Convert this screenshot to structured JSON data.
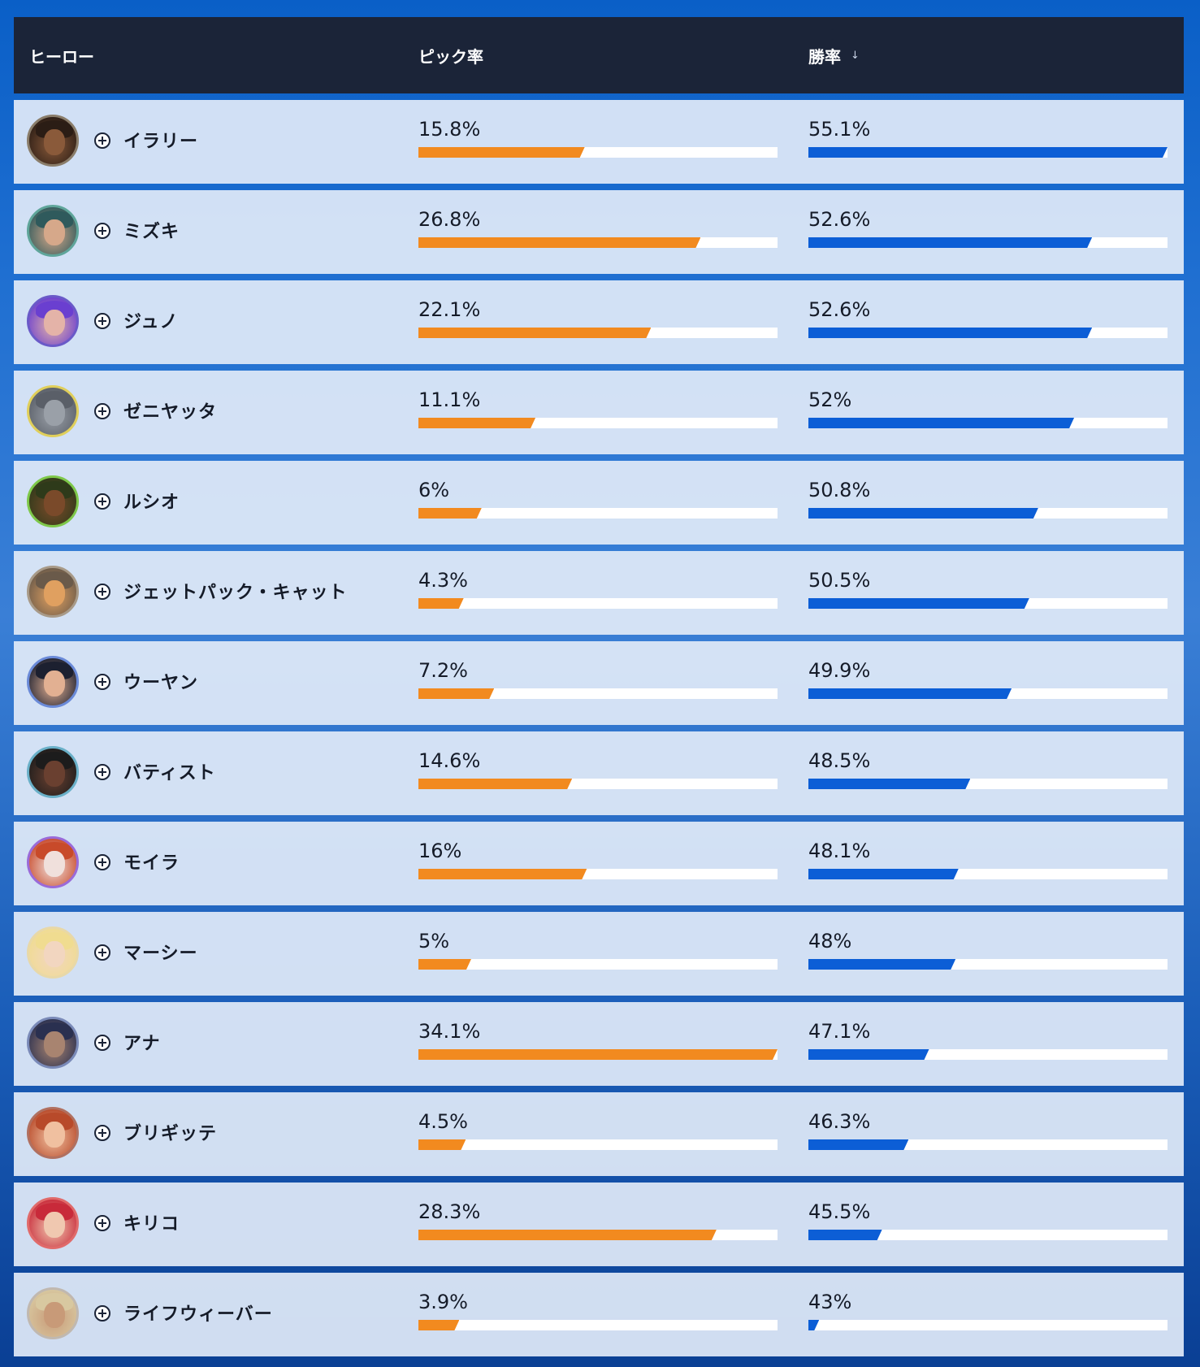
{
  "header": {
    "hero_label": "ヒーロー",
    "pick_label": "ピック率",
    "win_label": "勝率",
    "sort_icon": "arrow-down-icon"
  },
  "rows": [
    {
      "name": "イラリー",
      "pick": "15.8%",
      "pick_frac": 0.463,
      "win": "55.1%",
      "win_frac": 1.0,
      "ring": "#8a7d6a",
      "skin": "#8a5a3a",
      "hair": "#2b1d15"
    },
    {
      "name": "ミズキ",
      "pick": "26.8%",
      "pick_frac": 0.786,
      "win": "52.6%",
      "win_frac": 0.79,
      "ring": "#5fa59a",
      "skin": "#d6a88a",
      "hair": "#2f5a5c"
    },
    {
      "name": "ジュノ",
      "pick": "22.1%",
      "pick_frac": 0.648,
      "win": "52.6%",
      "win_frac": 0.79,
      "ring": "#6a5ac8",
      "skin": "#e4b3a8",
      "hair": "#6a3fd0"
    },
    {
      "name": "ゼニヤッタ",
      "pick": "11.1%",
      "pick_frac": 0.326,
      "win": "52%",
      "win_frac": 0.74,
      "ring": "#e0cf5a",
      "skin": "#9aa0a8",
      "hair": "#5a5f68"
    },
    {
      "name": "ルシオ",
      "pick": "6%",
      "pick_frac": 0.176,
      "win": "50.8%",
      "win_frac": 0.64,
      "ring": "#7ec84a",
      "skin": "#7a4a2a",
      "hair": "#2e3a1a"
    },
    {
      "name": "ジェットパック・キャット",
      "pick": "4.3%",
      "pick_frac": 0.126,
      "win": "50.5%",
      "win_frac": 0.615,
      "ring": "#a89a88",
      "skin": "#e0a060",
      "hair": "#6a5a4a"
    },
    {
      "name": "ウーヤン",
      "pick": "7.2%",
      "pick_frac": 0.211,
      "win": "49.9%",
      "win_frac": 0.566,
      "ring": "#6a8ad8",
      "skin": "#e2b092",
      "hair": "#1c2030"
    },
    {
      "name": "バティスト",
      "pick": "14.6%",
      "pick_frac": 0.428,
      "win": "48.5%",
      "win_frac": 0.451,
      "ring": "#6ab0c8",
      "skin": "#6a4030",
      "hair": "#1c1c1c"
    },
    {
      "name": "モイラ",
      "pick": "16%",
      "pick_frac": 0.469,
      "win": "48.1%",
      "win_frac": 0.418,
      "ring": "#9a6ad8",
      "skin": "#f0e0dc",
      "hair": "#c84a2a"
    },
    {
      "name": "マーシー",
      "pick": "5%",
      "pick_frac": 0.147,
      "win": "48%",
      "win_frac": 0.41,
      "ring": "#e8d8a8",
      "skin": "#f2d6c0",
      "hair": "#f0dc90"
    },
    {
      "name": "アナ",
      "pick": "34.1%",
      "pick_frac": 1.0,
      "win": "47.1%",
      "win_frac": 0.336,
      "ring": "#7a8ab8",
      "skin": "#a88470",
      "hair": "#2a3050"
    },
    {
      "name": "ブリギッテ",
      "pick": "4.5%",
      "pick_frac": 0.132,
      "win": "46.3%",
      "win_frac": 0.279,
      "ring": "#b07060",
      "skin": "#f0c0a0",
      "hair": "#b84a2a"
    },
    {
      "name": "キリコ",
      "pick": "28.3%",
      "pick_frac": 0.83,
      "win": "45.5%",
      "win_frac": 0.205,
      "ring": "#e06a6a",
      "skin": "#f0c8b0",
      "hair": "#c82a3a"
    },
    {
      "name": "ライフウィーバー",
      "pick": "3.9%",
      "pick_frac": 0.114,
      "win": "43%",
      "win_frac": 0.025,
      "ring": "#c0b8b0",
      "skin": "#c89a78",
      "hair": "#d8c8a0"
    }
  ]
}
